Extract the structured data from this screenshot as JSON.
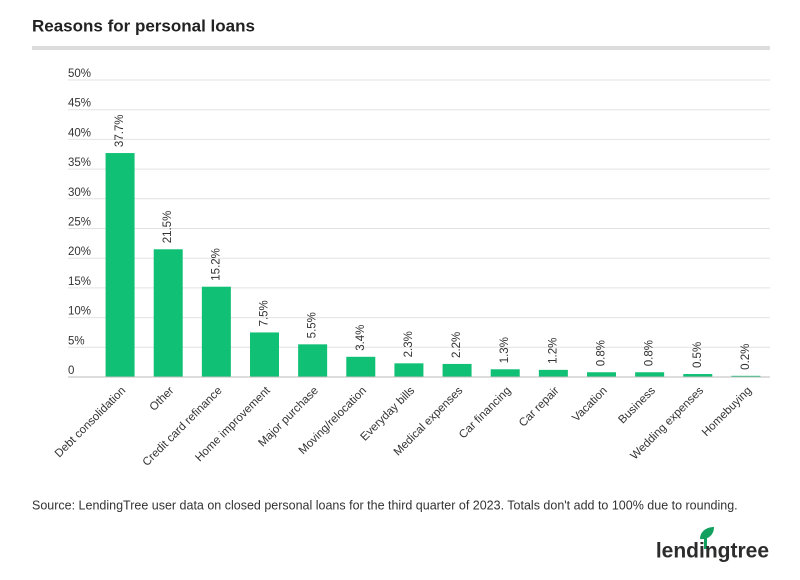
{
  "chart_data": {
    "type": "bar",
    "title": "Reasons for personal loans",
    "categories": [
      "Debt consolidation",
      "Other",
      "Credit card refinance",
      "Home improvement",
      "Major purchase",
      "Moving/relocation",
      "Everyday bills",
      "Medical expenses",
      "Car financing",
      "Car repair",
      "Vacation",
      "Business",
      "Wedding expenses",
      "Homebuying"
    ],
    "values": [
      37.7,
      21.5,
      15.2,
      7.5,
      5.5,
      3.4,
      2.3,
      2.2,
      1.3,
      1.2,
      0.8,
      0.8,
      0.5,
      0.2
    ],
    "value_labels": [
      "37.7%",
      "21.5%",
      "15.2%",
      "7.5%",
      "5.5%",
      "3.4%",
      "2.3%",
      "2.2%",
      "1.3%",
      "1.2%",
      "0.8%",
      "0.8%",
      "0.5%",
      "0.2%"
    ],
    "color": "#10c074",
    "ylim": [
      0,
      50
    ],
    "yticks": [
      0,
      {
        "value": 5,
        "label": "5%"
      },
      {
        "value": 10,
        "label": "10%"
      },
      {
        "value": 15,
        "label": "15%"
      },
      {
        "value": 20,
        "label": "20%"
      },
      {
        "value": 25,
        "label": "25%"
      },
      {
        "value": 30,
        "label": "30%"
      },
      {
        "value": 35,
        "label": "35%"
      },
      {
        "value": 40,
        "label": "40%"
      },
      {
        "value": 45,
        "label": "45%"
      },
      {
        "value": 50,
        "label": "50%"
      }
    ],
    "grid": true,
    "source": "Source: LendingTree user data on closed personal loans for the third quarter of 2023. Totals don't add to 100% due to rounding."
  },
  "brand": "lendingtree"
}
